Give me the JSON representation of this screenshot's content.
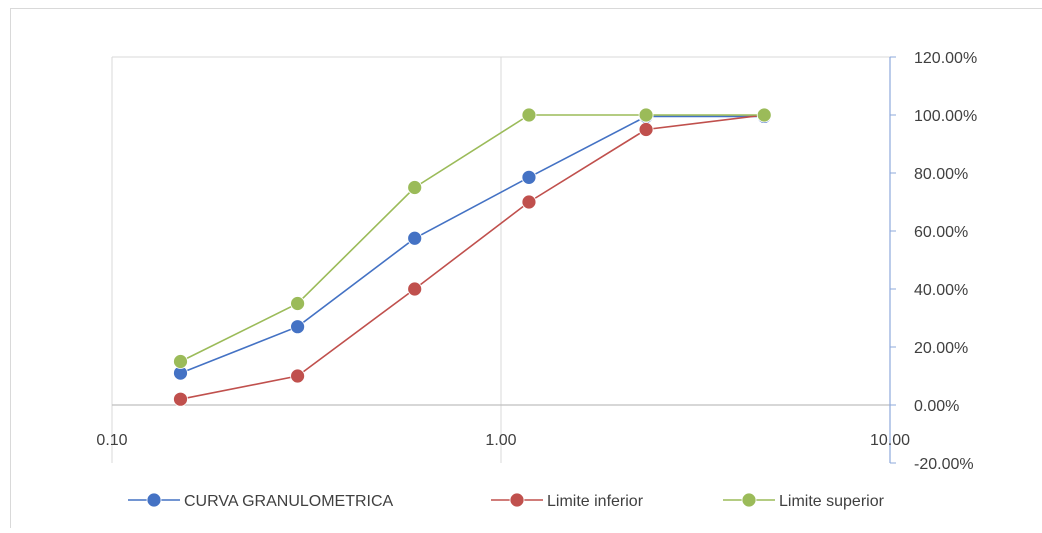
{
  "chart_data": {
    "type": "line",
    "x_scale": "log",
    "xlim": [
      0.1,
      10
    ],
    "ylim": [
      -0.2,
      1.2
    ],
    "x_ticks": [
      0.1,
      1,
      10
    ],
    "x_tick_labels": [
      "0.10",
      "1.00",
      "10.00"
    ],
    "y_ticks": [
      -0.2,
      0,
      0.2,
      0.4,
      0.6,
      0.8,
      1.0,
      1.2
    ],
    "y_tick_labels": [
      "-20.00%",
      "0.00%",
      "20.00%",
      "40.00%",
      "60.00%",
      "80.00%",
      "100.00%",
      "120.00%"
    ],
    "y_axis_position": "right",
    "grid": "vertical only",
    "legend_position": "bottom",
    "series": [
      {
        "name": "CURVA GRANULOMETRICA",
        "color": "#4472c4",
        "x": [
          0.15,
          0.3,
          0.6,
          1.18,
          2.36,
          4.75
        ],
        "y": [
          0.11,
          0.27,
          0.575,
          0.785,
          0.995,
          0.995
        ]
      },
      {
        "name": "Limite inferior",
        "color": "#c0504d",
        "x": [
          0.15,
          0.3,
          0.6,
          1.18,
          2.36,
          4.75
        ],
        "y": [
          0.02,
          0.1,
          0.4,
          0.7,
          0.95,
          1.0
        ]
      },
      {
        "name": "Limite superior",
        "color": "#9bbb59",
        "x": [
          0.15,
          0.3,
          0.6,
          1.18,
          2.36,
          4.75
        ],
        "y": [
          0.15,
          0.35,
          0.75,
          1.0,
          1.0,
          1.0
        ]
      }
    ]
  }
}
